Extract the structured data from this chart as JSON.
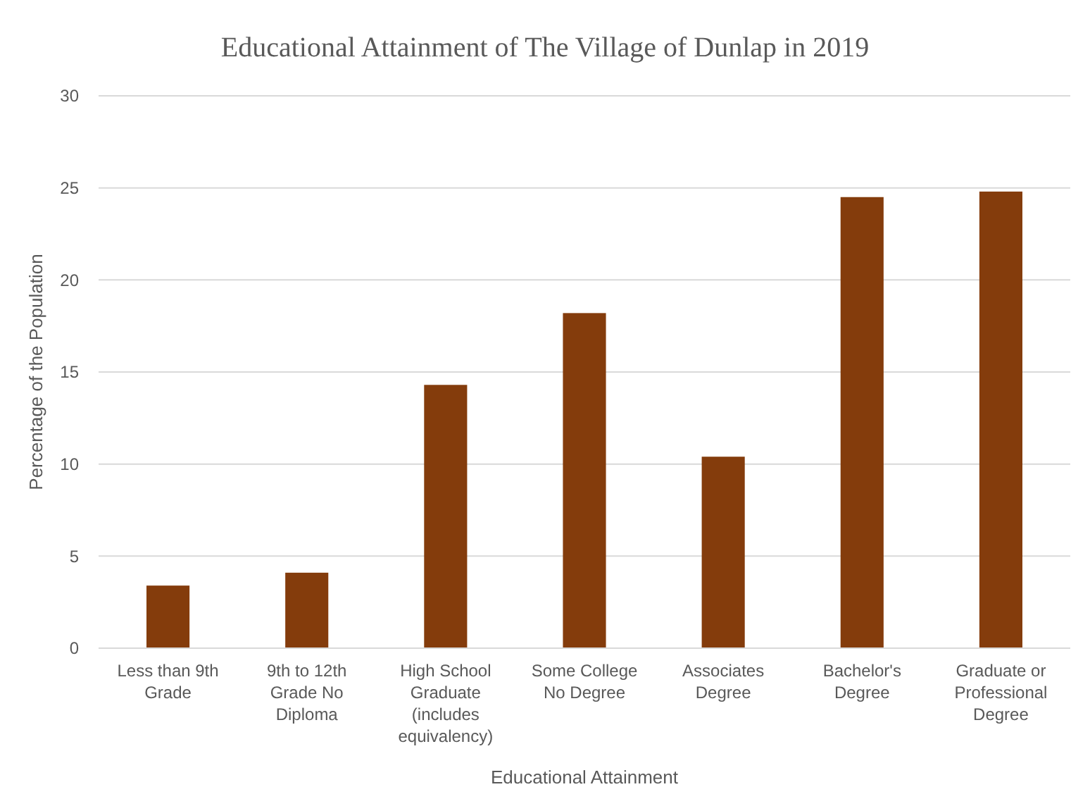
{
  "chart_data": {
    "type": "bar",
    "title": "Educational Attainment of The Village of Dunlap in 2019",
    "xlabel": "Educational Attainment",
    "ylabel": "Percentage of the Population",
    "categories": [
      "Less than 9th Grade",
      "9th to 12th Grade No Diploma",
      "High School Graduate (includes equivalency)",
      "Some College No Degree",
      "Associates Degree",
      "Bachelor's Degree",
      "Graduate or Professional Degree"
    ],
    "values": [
      3.4,
      4.1,
      14.3,
      18.2,
      10.4,
      24.5,
      24.8
    ],
    "color": "#843c0c",
    "ylim": [
      0,
      30
    ],
    "yticks": [
      0,
      5,
      10,
      15,
      20,
      25,
      30
    ],
    "grid": "y"
  }
}
